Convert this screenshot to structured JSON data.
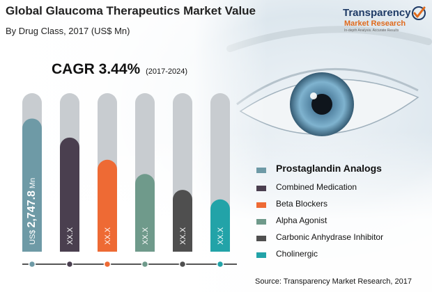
{
  "header": {
    "title": "Global Glaucoma Therapeutics Market Value",
    "subtitle": "By Drug Class, 2017 (US$ Mn)"
  },
  "brand": {
    "name_line1": "Transparency",
    "name_line2": "Market Research",
    "tagline": "In-depth Analysis. Accurate Results"
  },
  "cagr": {
    "label": "CAGR 3.44%",
    "period": "(2017-2024)"
  },
  "source": "Source: Transparency Market Research, 2017",
  "colors": {
    "track": "#c8ccd0",
    "axis": "#555555",
    "dot_fill": "#ffffff"
  },
  "chart_data": {
    "type": "bar",
    "orientation": "vertical",
    "title": "Global Glaucoma Therapeutics Market Value",
    "subtitle": "By Drug Class, 2017 (US$ Mn)",
    "categories": [
      "Prostaglandin Analogs",
      "Combined Medication",
      "Beta Blockers",
      "Alpha Agonist",
      "Carbonic Anhydrase Inhibitor",
      "Cholinergic"
    ],
    "colors": [
      "#6e9aa6",
      "#4a3f4f",
      "#ee6a34",
      "#6f9a8b",
      "#4f4f4f",
      "#22a3a8"
    ],
    "values": [
      2747.8,
      null,
      null,
      null,
      null,
      null
    ],
    "relative_fill": [
      0.84,
      0.72,
      0.58,
      0.49,
      0.39,
      0.33
    ],
    "data_labels": [
      "US$ 2,747.8 Mn",
      "XX.X",
      "XX.X",
      "XX.X",
      "XX.X",
      "XX.X"
    ],
    "data_label_prefix": "US$ ",
    "data_label_value": "2,747.8",
    "data_label_suffix": " Mn",
    "legend_position": "right",
    "grid": false
  }
}
